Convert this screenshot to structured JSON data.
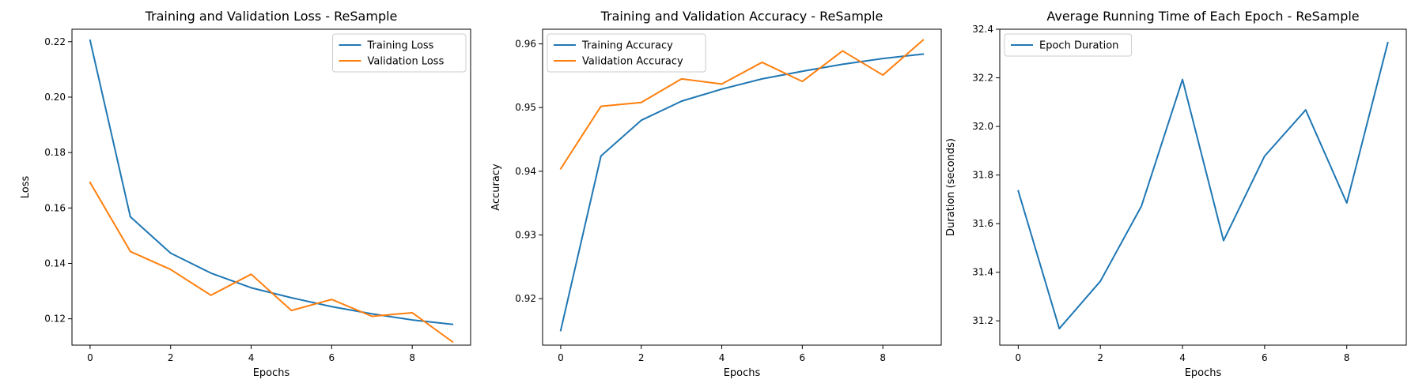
{
  "chart_data": [
    {
      "type": "line",
      "title": "Training and Validation Loss - ReSample",
      "xlabel": "Epochs",
      "ylabel": "Loss",
      "x": [
        0,
        1,
        2,
        3,
        4,
        5,
        6,
        7,
        8,
        9
      ],
      "xlim": [
        -0.45,
        9.45
      ],
      "ylim": [
        0.1105,
        0.2245
      ],
      "xticks": [
        0,
        2,
        4,
        6,
        8
      ],
      "yticks": [
        0.12,
        0.14,
        0.16,
        0.18,
        0.2,
        0.22
      ],
      "ytick_decimals": 2,
      "legend_position": "top-right",
      "grid": false,
      "series": [
        {
          "name": "Training Loss",
          "color": "#1f77b4",
          "values": [
            0.2205,
            0.1568,
            0.1437,
            0.1365,
            0.1312,
            0.1276,
            0.1244,
            0.1218,
            0.1196,
            0.118
          ]
        },
        {
          "name": "Validation Loss",
          "color": "#ff7f0e",
          "values": [
            0.1692,
            0.1443,
            0.1378,
            0.1285,
            0.1361,
            0.123,
            0.127,
            0.1209,
            0.1222,
            0.1117
          ]
        }
      ]
    },
    {
      "type": "line",
      "title": "Training and Validation Accuracy - ReSample",
      "xlabel": "Epochs",
      "ylabel": "Accuracy",
      "x": [
        0,
        1,
        2,
        3,
        4,
        5,
        6,
        7,
        8,
        9
      ],
      "xlim": [
        -0.45,
        9.45
      ],
      "ylim": [
        0.9127,
        0.9623
      ],
      "xticks": [
        0,
        2,
        4,
        6,
        8
      ],
      "yticks": [
        0.92,
        0.93,
        0.94,
        0.95,
        0.96
      ],
      "ytick_decimals": 2,
      "legend_position": "top-left",
      "grid": false,
      "series": [
        {
          "name": "Training Accuracy",
          "color": "#1f77b4",
          "values": [
            0.915,
            0.9424,
            0.948,
            0.951,
            0.9529,
            0.9545,
            0.9557,
            0.9568,
            0.9577,
            0.9584
          ]
        },
        {
          "name": "Validation Accuracy",
          "color": "#ff7f0e",
          "values": [
            0.9404,
            0.9502,
            0.9508,
            0.9545,
            0.9537,
            0.9571,
            0.9541,
            0.9589,
            0.9551,
            0.9606
          ]
        }
      ]
    },
    {
      "type": "line",
      "title": "Average Running Time of Each Epoch - ReSample",
      "xlabel": "Epochs",
      "ylabel": "Duration (seconds)",
      "x": [
        0,
        1,
        2,
        3,
        4,
        5,
        6,
        7,
        8,
        9
      ],
      "xlim": [
        -0.45,
        9.45
      ],
      "ylim": [
        31.1,
        32.4
      ],
      "xticks": [
        0,
        2,
        4,
        6,
        8
      ],
      "yticks": [
        31.2,
        31.4,
        31.6,
        31.8,
        32.0,
        32.2,
        32.4
      ],
      "ytick_decimals": 1,
      "legend_position": "top-left",
      "grid": false,
      "series": [
        {
          "name": "Epoch Duration",
          "color": "#1f77b4",
          "values": [
            31.735,
            31.168,
            31.363,
            31.672,
            32.193,
            31.53,
            31.878,
            32.068,
            31.685,
            32.345
          ]
        }
      ]
    }
  ]
}
